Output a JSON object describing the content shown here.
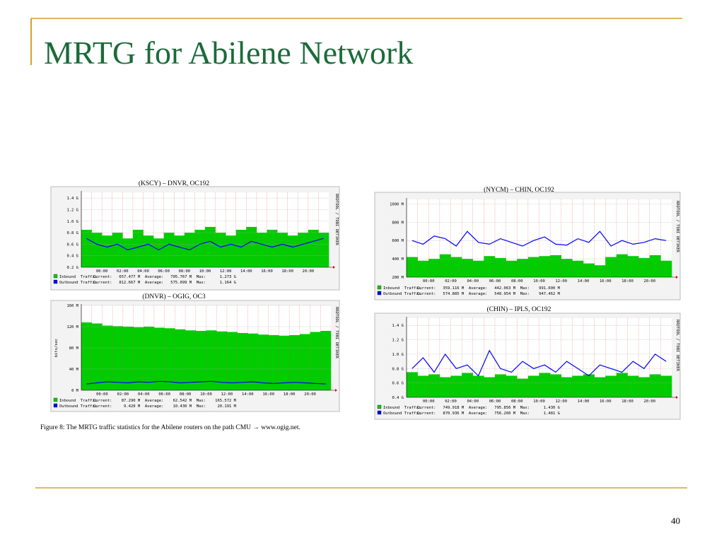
{
  "title": "MRTG for Abilene Network",
  "caption": "Figure 8: The MRTG traffic statistics for the Abilene routers on the path CMU → www.ogig.net.",
  "page_number": "40",
  "chart_data": [
    {
      "type": "area",
      "title": "(KSCY) – DNVR, OC192",
      "categories": [
        null,
        null,
        "00:00",
        null,
        "02:00",
        null,
        "04:00",
        null,
        "06:00",
        null,
        "08:00",
        null,
        "10:00",
        null,
        "12:00",
        null,
        "14:00",
        null,
        "16:00",
        null,
        "18:00",
        null,
        "20:00",
        null
      ],
      "ylim": [
        0.2,
        1.5
      ],
      "yticks": [
        {
          "value": 0.2,
          "label": "0.2 G"
        },
        {
          "value": 0.4,
          "label": "0.4 G"
        },
        {
          "value": 0.6,
          "label": "0.6 G"
        },
        {
          "value": 0.8,
          "label": "0.8 G"
        },
        {
          "value": 1.0,
          "label": "1.0 G"
        },
        {
          "value": 1.2,
          "label": "1.2 G"
        },
        {
          "value": 1.4,
          "label": "1.4 G"
        }
      ],
      "side_text": "RRDTOOL / TOBI OETIKER",
      "series": [
        {
          "name": "Inbound  Traffic",
          "color": "#00cc00",
          "stats": "Current:   657.477 M  Average:   705.767 M  Max:      1.273 G",
          "values": [
            0.85,
            0.8,
            0.75,
            0.8,
            0.7,
            0.85,
            0.75,
            0.7,
            0.8,
            0.75,
            0.8,
            0.85,
            0.9,
            0.8,
            0.75,
            0.85,
            0.9,
            0.8,
            0.85,
            0.8,
            0.75,
            0.8,
            0.85,
            0.8
          ]
        },
        {
          "name": "Outbound Traffic",
          "color": "#0000ff",
          "stats": "Current:   812.667 M  Average:   575.099 M  Max:      1.164 G",
          "values": [
            0.7,
            0.6,
            0.55,
            0.6,
            0.5,
            0.55,
            0.6,
            0.5,
            0.6,
            0.55,
            0.5,
            0.6,
            0.65,
            0.55,
            0.6,
            0.55,
            0.65,
            0.6,
            0.55,
            0.6,
            0.55,
            0.6,
            0.65,
            0.7
          ]
        }
      ]
    },
    {
      "type": "area",
      "title": "(NYCM) – CHIN, OC192",
      "categories": [
        null,
        null,
        "00:00",
        null,
        "02:00",
        null,
        "04:00",
        null,
        "06:00",
        null,
        "08:00",
        null,
        "10:00",
        null,
        "12:00",
        null,
        "14:00",
        null,
        "16:00",
        null,
        "18:00",
        null,
        "20:00",
        null
      ],
      "ylim": [
        200,
        1050
      ],
      "yticks": [
        {
          "value": 200,
          "label": "200 M"
        },
        {
          "value": 400,
          "label": "400 M"
        },
        {
          "value": 600,
          "label": "600 M"
        },
        {
          "value": 800,
          "label": "800 M"
        },
        {
          "value": 1000,
          "label": "1000 M"
        }
      ],
      "side_text": "RRDTOOL / TOBI OETIKER",
      "series": [
        {
          "name": "Inbound  Traffic",
          "color": "#00cc00",
          "stats": "Current:   359.116 M  Average:   442.063 M  Max:    991.600 M",
          "values": [
            420,
            380,
            400,
            450,
            420,
            400,
            380,
            430,
            410,
            380,
            400,
            420,
            430,
            440,
            400,
            380,
            350,
            330,
            420,
            450,
            430,
            410,
            440,
            380
          ]
        },
        {
          "name": "Outbound Traffic",
          "color": "#0000ff",
          "stats": "Current:   574.885 M  Average:   548.954 M  Max:    947.462 M",
          "values": [
            600,
            560,
            650,
            620,
            540,
            700,
            580,
            560,
            620,
            580,
            540,
            600,
            640,
            560,
            550,
            620,
            580,
            700,
            540,
            600,
            560,
            580,
            620,
            600
          ]
        }
      ]
    },
    {
      "type": "area",
      "title": "(DNVR) – OGIG, OC3",
      "categories": [
        null,
        null,
        "00:00",
        null,
        "02:00",
        null,
        "04:00",
        null,
        "06:00",
        null,
        "08:00",
        null,
        "10:00",
        null,
        "12:00",
        null,
        "14:00",
        null,
        "16:00",
        null,
        "18:00",
        null,
        "20:00",
        null
      ],
      "ylim": [
        0,
        160
      ],
      "yticks": [
        {
          "value": 0,
          "label": "0 M"
        },
        {
          "value": 40,
          "label": "40 M"
        },
        {
          "value": 80,
          "label": "80 M"
        },
        {
          "value": 120,
          "label": "120 M"
        },
        {
          "value": 160,
          "label": "160 M"
        }
      ],
      "ylabel": "bits/sec",
      "side_text": "RRDTOOL / TOBI OETIKER",
      "series": [
        {
          "name": "Inbound  Traffic",
          "color": "#00cc00",
          "stats": "Current:    87.290 M  Average:    62.542 M  Max:    165.572 M",
          "values": [
            128,
            126,
            122,
            121,
            120,
            119,
            120,
            118,
            117,
            115,
            113,
            112,
            113,
            111,
            110,
            108,
            107,
            105,
            104,
            103,
            104,
            106,
            110,
            112
          ]
        },
        {
          "name": "Outbound Traffic",
          "color": "#0000ff",
          "stats": "Current:     9.420 M  Average:    10.430 M  Max:     20.191 M",
          "values": [
            12,
            14,
            16,
            15,
            14,
            16,
            15,
            17,
            16,
            14,
            15,
            16,
            17,
            15,
            14,
            15,
            16,
            14,
            13,
            14,
            15,
            14,
            13,
            12
          ]
        }
      ]
    },
    {
      "type": "area",
      "title": "(CHIN) – IPLS, OC192",
      "categories": [
        null,
        null,
        "00:00",
        null,
        "02:00",
        null,
        "04:00",
        null,
        "06:00",
        null,
        "08:00",
        null,
        "10:00",
        null,
        "12:00",
        null,
        "14:00",
        null,
        "16:00",
        null,
        "18:00",
        null,
        "20:00",
        null
      ],
      "ylim": [
        0.4,
        1.5
      ],
      "yticks": [
        {
          "value": 0.4,
          "label": "0.4 G"
        },
        {
          "value": 0.6,
          "label": "0.6 G"
        },
        {
          "value": 0.8,
          "label": "0.8 G"
        },
        {
          "value": 1.0,
          "label": "1.0 G"
        },
        {
          "value": 1.2,
          "label": "1.2 G"
        },
        {
          "value": 1.4,
          "label": "1.4 G"
        }
      ],
      "side_text": "RRDTOOL / TOBI OETIKER",
      "series": [
        {
          "name": "Inbound  Traffic",
          "color": "#00cc00",
          "stats": "Current:   749.918 M  Average:   795.856 M  Max:      1.430 G",
          "values": [
            0.75,
            0.7,
            0.72,
            0.68,
            0.7,
            0.74,
            0.7,
            0.68,
            0.72,
            0.7,
            0.66,
            0.7,
            0.74,
            0.72,
            0.68,
            0.7,
            0.72,
            0.68,
            0.7,
            0.74,
            0.7,
            0.68,
            0.72,
            0.7
          ]
        },
        {
          "name": "Outbound Traffic",
          "color": "#0000ff",
          "stats": "Current:   870.936 M  Average:   756.260 M  Max:      1.481 G",
          "values": [
            0.8,
            0.95,
            0.75,
            1.0,
            0.8,
            0.85,
            0.7,
            1.05,
            0.8,
            0.75,
            0.9,
            0.8,
            0.85,
            0.75,
            0.9,
            0.8,
            0.7,
            0.85,
            0.8,
            0.75,
            0.9,
            0.8,
            1.0,
            0.9
          ]
        }
      ]
    }
  ]
}
